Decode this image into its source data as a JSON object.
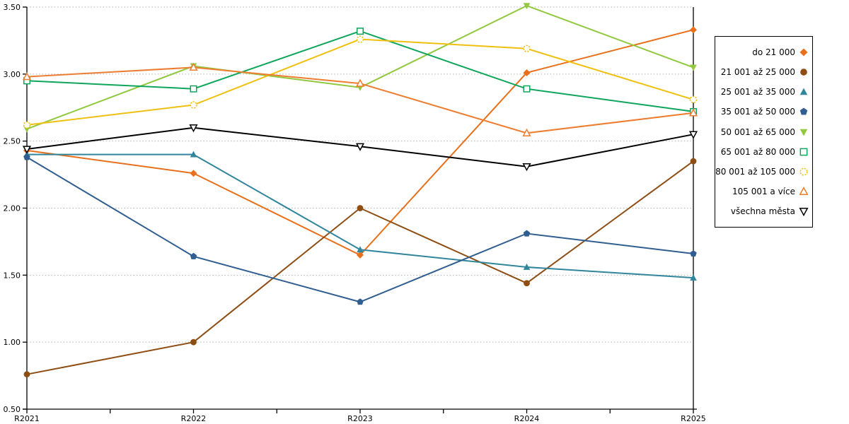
{
  "chart_data": {
    "type": "line",
    "title": "",
    "xlabel": "",
    "ylabel": "",
    "x_categories": [
      "R2021",
      "R2022",
      "R2023",
      "R2024",
      "R2025"
    ],
    "ylim": [
      0.5,
      3.5
    ],
    "ytick_labels": [
      "0.50",
      "1.00",
      "1.50",
      "2.00",
      "2.50",
      "3.00",
      "3.50"
    ],
    "grid": "horizontal dotted gridlines at every 0.50",
    "legend_position": "right, boxed",
    "axis_color": "#000000",
    "gridline_color": "#b0b0b0",
    "series": [
      {
        "name": "do 21 000",
        "marker": "diamond",
        "fill": "solid",
        "color": "#e8701a",
        "values": [
          2.43,
          2.26,
          1.65,
          3.01,
          3.33
        ]
      },
      {
        "name": "21 001 až 25 000",
        "marker": "circle",
        "fill": "solid",
        "color": "#8e4d13",
        "values": [
          0.76,
          1.0,
          2.0,
          1.44,
          2.35
        ]
      },
      {
        "name": "25 001 až 35 000",
        "marker": "triangle-up",
        "fill": "solid",
        "color": "#31859c",
        "values": [
          2.4,
          2.4,
          1.69,
          1.56,
          1.48
        ]
      },
      {
        "name": "35 001 až 50 000",
        "marker": "pentagon",
        "fill": "solid",
        "color": "#305e90",
        "values": [
          2.38,
          1.64,
          1.3,
          1.81,
          1.66
        ]
      },
      {
        "name": "50 001 až 65 000",
        "marker": "triangle-down",
        "fill": "solid",
        "color": "#92c83e",
        "values": [
          2.59,
          3.06,
          2.9,
          3.51,
          3.05
        ]
      },
      {
        "name": "65 001 až 80 000",
        "marker": "square",
        "fill": "open",
        "color": "#0fa65c",
        "values": [
          2.95,
          2.89,
          3.32,
          2.89,
          2.72
        ]
      },
      {
        "name": "80 001 až 105 000",
        "marker": "circle-dashed",
        "fill": "open",
        "color": "#f0c011",
        "values": [
          2.62,
          2.77,
          3.26,
          3.19,
          2.81
        ]
      },
      {
        "name": "105 001 a více",
        "marker": "triangle-up",
        "fill": "open",
        "color": "#ed7d31",
        "values": [
          2.98,
          3.05,
          2.93,
          2.56,
          2.71
        ]
      },
      {
        "name": "všechna města",
        "marker": "triangle-down",
        "fill": "open",
        "color": "#000000",
        "values": [
          2.44,
          2.6,
          2.46,
          2.31,
          2.55
        ]
      }
    ]
  }
}
